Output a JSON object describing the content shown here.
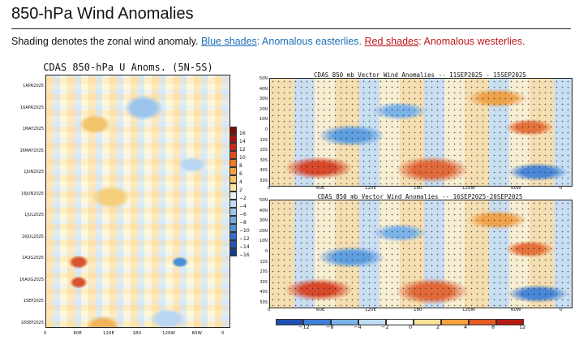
{
  "page": {
    "title": "850-hPa Wind Anomalies",
    "subtitle_prefix": "Shading denotes the zonal wind anomaly.",
    "blue_link": "Blue shades",
    "blue_desc": ": Anomalous easterlies.",
    "red_link": "Red shades",
    "red_desc": ": Anomalous westerlies."
  },
  "hovmoller": {
    "title": "CDAS 850-hPa U Anoms. (5N-5S)",
    "y_labels": [
      "1APR2025",
      "16APR2025",
      "1MAY2025",
      "16MAY2025",
      "1JUN2025",
      "16JUN2025",
      "1JUL2025",
      "16JUL2025",
      "1AUG2025",
      "16AUG2025",
      "1SEP2025",
      "16SEP2025"
    ],
    "x_labels": [
      "0",
      "60E",
      "120E",
      "180",
      "120W",
      "60W",
      "0"
    ],
    "colorbar_labels": [
      "16",
      "14",
      "12",
      "10",
      "8",
      "6",
      "4",
      "2",
      "−2",
      "−4",
      "−6",
      "−8",
      "−10",
      "−12",
      "−14",
      "−16"
    ]
  },
  "maps": [
    {
      "title": "CDAS 850 mb Vector Wind Anomalies -- 11SEP2025 - 15SEP2025"
    },
    {
      "title": "CDAS 850 mb Vector Wind Anomalies -- 16SEP2025-20SEP2025"
    }
  ],
  "map_y_labels": [
    "50N",
    "40N",
    "30N",
    "20N",
    "10N",
    "0",
    "10S",
    "20S",
    "30S",
    "40S",
    "50S"
  ],
  "map_x_labels": [
    "0",
    "60E",
    "120E",
    "180",
    "120W",
    "60W",
    "0"
  ],
  "colorbar_h_labels": [
    "−12",
    "−8",
    "−4",
    "−2",
    "0",
    "2",
    "4",
    "8",
    "12"
  ],
  "colors": {
    "cbar_v": [
      "#7a0d0d",
      "#a31515",
      "#c62a1a",
      "#e04a1f",
      "#ef7b2a",
      "#f4a23d",
      "#f8c766",
      "#fbe7a4",
      "#e6f1fb",
      "#c2dcf5",
      "#9cc4ec",
      "#74a9e2",
      "#4f8ed8",
      "#356fca",
      "#2552ad",
      "#1a3b8a"
    ],
    "cbar_h": [
      "#1f4fb0",
      "#3f7fd4",
      "#7ab1e6",
      "#bfdbf5",
      "#ffffff",
      "#fbe19a",
      "#f4a23d",
      "#e45b23",
      "#b61b12"
    ]
  }
}
